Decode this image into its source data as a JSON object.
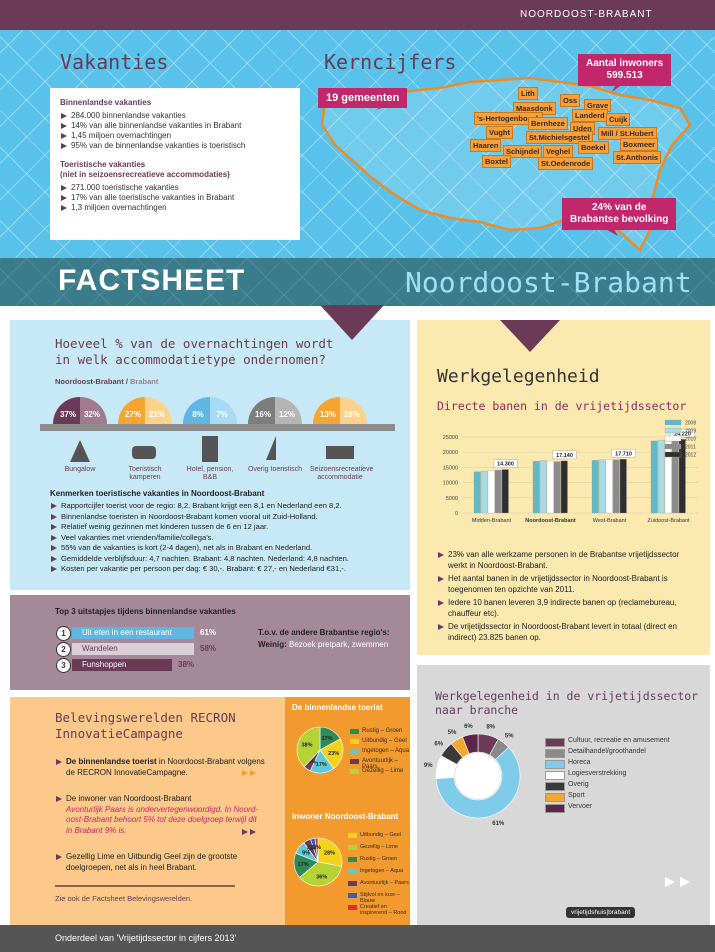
{
  "header": {
    "region": "NOORDOOST-BRABANT"
  },
  "vakanties": {
    "title": "Vakanties",
    "groups": [
      {
        "heading": [
          "Binnenlandse vakanties"
        ],
        "items": [
          "284.000 binnenlandse vakanties",
          "14% van alle binnenlandse vakanties in Brabant",
          "1,45 miljoen overnachtingen",
          "95% van de binnenlandse vakanties is toeristisch"
        ]
      },
      {
        "heading": [
          "Toeristische vakanties",
          "(niet in seizoensrecreatieve accommodaties)"
        ],
        "items": [
          "271.000 toeristische vakanties",
          "17% van alle toeristische vakanties in Brabant",
          "1,3 miljoen overnachtingen"
        ]
      }
    ]
  },
  "kerncijfers": {
    "title": "Kerncijfers",
    "gemeenten": "19 gemeenten",
    "inwoners_label": "Aantal inwoners",
    "inwoners": "599.513",
    "aandeel": [
      "24% van de",
      "Brabantse bevolking"
    ],
    "places": [
      "Lith",
      "Oss",
      "Grave",
      "Maasdonk",
      "Landerd",
      "Cuijk",
      "'s-Hertogenbosch",
      "Bernheze",
      "Uden",
      "Mill / St.Hubert",
      "Vught",
      "St.Michielsgestel",
      "Haaren",
      "Schijndel",
      "Veghel",
      "Boekel",
      "Boxmeer",
      "Boxtel",
      "St.Oedenrode",
      "St.Anthonis"
    ]
  },
  "banner": {
    "left": "FACTSHEET",
    "right": "Noordoost-Brabant"
  },
  "accommodatie": {
    "title": [
      "Hoeveel % van de overnachtingen wordt",
      "in welk accommodatietype ondernomen?"
    ],
    "legend_region": "Noordoost-Brabant",
    "legend_sep": " / ",
    "legend_other": "Brabant",
    "types": [
      {
        "name": "Bungalow",
        "region": "37%",
        "brabant": "32%"
      },
      {
        "name": "Toeristisch kamperen",
        "region": "27%",
        "brabant": "21%"
      },
      {
        "name": "Hotel, pension, B&B",
        "region": "8%",
        "brabant": "7%"
      },
      {
        "name": "Overig toeristisch",
        "region": "16%",
        "brabant": "12%"
      },
      {
        "name": "Seizoensrecreatieve accommodatie",
        "region": "13%",
        "brabant": "28%"
      }
    ],
    "kenmerken_title": "Kenmerken toeristische vakanties in Noordoost-Brabant",
    "kenmerken": [
      "Rapportcijfer toerist voor de regio: 8,2. Brabant krijgt een 8,1 en Nederland een 8,2.",
      "Binnenlandse toeristen in Noordoost-Brabant komen vooral uit Zuid-Holland.",
      "Relatief weinig gezinnen met kinderen tussen de 6 en 12 jaar.",
      "Veel vakanties met vrienden/familie/collega's.",
      "55% van de vakanties is kort (2-4 dagen), net als in Brabant en Nederland.",
      "Gemiddelde verblijfsduur: 4,7 nachten. Brabant: 4,8 nachten. Nederland: 4,8 nachten.",
      "Kosten per vakantie per persoon per dag: € 30,-. Brabant: € 27,- en Nederland €31,-."
    ]
  },
  "uitstapjes": {
    "title": "Top 3 uitstapjes tijdens binnenlandse vakanties",
    "items": [
      {
        "rank": "1",
        "name": "Uit eten in een restaurant",
        "pct": "61%"
      },
      {
        "rank": "2",
        "name": "Wandelen",
        "pct": "58%"
      },
      {
        "rank": "3",
        "name": "Funshoppen",
        "pct": "38%"
      }
    ],
    "tov": "T.o.v. de andere Brabantse regio's:",
    "weinig_label": "Weinig:",
    "weinig": "Bezoek pretpark, zwemmen"
  },
  "werk": {
    "title": "Werkgelegenheid",
    "bullets": [
      "23% van alle werkzame personen in de Brabantse vrijetijdssector werkt in Noordoost-Brabant.",
      "Het aantal banen in de vrijetijdssector in Noordoost-Brabant is toegenomen ten opzichte van 2011.",
      "Iedere 10 banen leveren 3,9 indirecte banen op (reclamebureau, chauffeur etc).",
      "De vrijetijdssector in Noordoost-Brabant levert in totaal (direct en indirect) 23.825 banen op."
    ]
  },
  "recron": {
    "title": [
      "Belevingswerelden RECRON",
      "InnovatieCampagne"
    ],
    "items": [
      {
        "bold": "De binnenlandse toerist",
        "text": "in Noordoost-Brabant volgens de RECRON InnovatieCampagne."
      },
      {
        "text": "De inwoner van Noordoost-Brabant",
        "note": "Avonturlijk Paars is ondervertegenwoordigd. In Noord-oost-Brabant behoort 5% tot deze doelgroep terwijl dit in Brabant 9% is."
      },
      {
        "text": "Gezellig Lime en Uitbundig Geel zijn de grootste doelgroepen, net als in heel Brabant."
      }
    ],
    "link": "Zie ook de Factsheet Belevingswerelden."
  },
  "branche": {
    "title": [
      "Werkgelegenheid in de vrijetijdssector",
      "naar branche"
    ]
  },
  "footer": "Onderdeel van 'Vrijetijdssector in cijfers 2013'",
  "logo": "vrijetijdshuis|brabant",
  "chart_data": [
    {
      "type": "bar",
      "title": "Directe banen in de vrijetijdssector",
      "categories": [
        "Midden-Brabant",
        "Noordoost-Brabant",
        "West-Brabant",
        "Zuidoost-Brabant"
      ],
      "series": [
        {
          "name": "2008",
          "color": "#5fb9c6",
          "values": [
            13600,
            17000,
            17300,
            23700
          ]
        },
        {
          "name": "2009",
          "color": "#a9dbe3",
          "values": [
            13800,
            17300,
            17500,
            24000
          ]
        },
        {
          "name": "2010",
          "color": "#ffffff",
          "values": [
            14000,
            17100,
            17600,
            23600
          ]
        },
        {
          "name": "2011",
          "color": "#8c8c8c",
          "values": [
            14100,
            16900,
            17500,
            24100
          ]
        },
        {
          "name": "2012",
          "color": "#2f2f2f",
          "values": [
            14300,
            17140,
            17710,
            24220
          ],
          "value_labels": [
            "14.300",
            "17.140",
            "17.710",
            "24.220"
          ]
        }
      ],
      "ylim": [
        0,
        25000
      ],
      "yticks": [
        0,
        5000,
        10000,
        15000,
        20000,
        25000
      ],
      "grid": true
    },
    {
      "type": "pie",
      "categories": [
        "Cultuur, recreatie en amusement",
        "Detailhandel/groothandel",
        "Horeca",
        "Logiesverstrekking",
        "Overig",
        "Sport",
        "Vervoer"
      ],
      "values": [
        8,
        5,
        61,
        9,
        6,
        5,
        6
      ],
      "value_labels": [
        "8%",
        "5%",
        "61%",
        "9%",
        "6%",
        "5%",
        "6%"
      ],
      "colors": [
        "#6b3a57",
        "#8a8a8a",
        "#7fcbea",
        "#ffffff",
        "#3a3a3a",
        "#f7a531",
        "#5b2748"
      ]
    },
    {
      "type": "pie",
      "title": "De binnenlandse toerist",
      "categories": [
        "Rustig – Groen",
        "Uitbundig – Geel",
        "Ingetogen – Aqua",
        "Avontuurlijk – Paars",
        "Gezellig – Lime"
      ],
      "values": [
        17,
        23,
        17,
        5,
        38
      ],
      "value_labels": [
        "17%",
        "23%",
        "17%",
        "5%",
        "38%"
      ],
      "colors": [
        "#2e8b57",
        "#f2d21b",
        "#5fc8d8",
        "#6b3a57",
        "#b5d334"
      ]
    },
    {
      "type": "pie",
      "title": "Inwoner Noordoost-Brabant",
      "categories": [
        "Uitbundig – Geel",
        "Gezellig – Lime",
        "Rustig – Groen",
        "Ingetogen – Aqua",
        "Avontuurlijk – Paars",
        "Stijlvol en luxe – Blauw",
        "Creatief en inspirerend – Rood"
      ],
      "values": [
        28,
        36,
        17,
        9,
        5,
        3,
        2
      ],
      "value_labels": [
        "28%",
        "36%",
        "17%",
        "9%",
        "5%",
        "3%",
        "2%"
      ],
      "colors": [
        "#f2d21b",
        "#b5d334",
        "#2e8b57",
        "#5fc8d8",
        "#6b3a57",
        "#3a5fb0",
        "#d9342b"
      ]
    }
  ]
}
